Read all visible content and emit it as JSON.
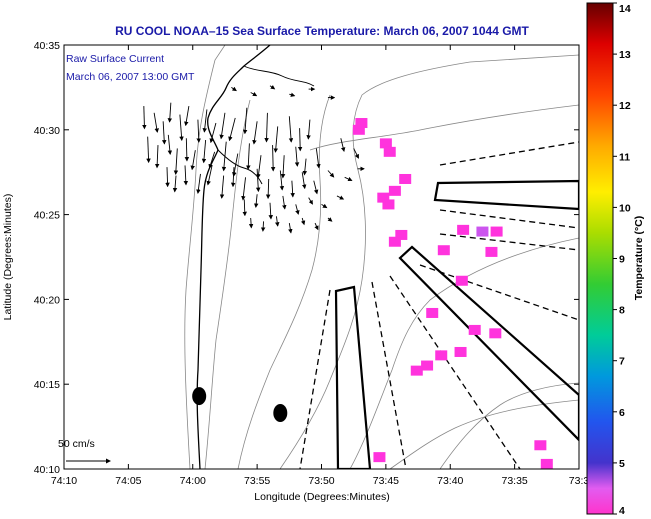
{
  "chart_data": {
    "type": "heatmap",
    "title": "RU COOL  NOAA–15  Sea Surface Temperature:  March 06, 2007 1044 GMT",
    "annotation_lines": [
      "Raw Surface Current",
      "March 06, 2007 13:00 GMT"
    ],
    "scale_label": "50 cm/s",
    "xlabel": "Longitude (Degrees:Minutes)",
    "ylabel": "Latitude (Degrees:Minutes)",
    "x_ticks": [
      {
        "value": 10,
        "label": "74:10"
      },
      {
        "value": 5,
        "label": "74:05"
      },
      {
        "value": 0,
        "label": "74:00"
      },
      {
        "value": -5,
        "label": "73:55"
      },
      {
        "value": -10,
        "label": "73:50"
      },
      {
        "value": -15,
        "label": "73:45"
      },
      {
        "value": -20,
        "label": "73:40"
      },
      {
        "value": -25,
        "label": "73:35"
      },
      {
        "value": -30,
        "label": "73:3"
      }
    ],
    "y_ticks": [
      {
        "value": 10,
        "label": "40:10"
      },
      {
        "value": 15,
        "label": "40:15"
      },
      {
        "value": 20,
        "label": "40:20"
      },
      {
        "value": 25,
        "label": "40:25"
      },
      {
        "value": 30,
        "label": "40:30"
      },
      {
        "value": 35,
        "label": "40:35"
      }
    ],
    "colorbar": {
      "label": "Temperature (°C)",
      "range": [
        4,
        14
      ],
      "ticks": [
        "4",
        "5",
        "6",
        "7",
        "8",
        "9",
        "10",
        "11",
        "12",
        "13",
        "14"
      ]
    },
    "sst_patches": [
      {
        "x": -12.9,
        "y": 30.0,
        "v": 4.1
      },
      {
        "x": -13.1,
        "y": 30.4,
        "v": 4.1
      },
      {
        "x": -15.0,
        "y": 29.2,
        "v": 4.1
      },
      {
        "x": -15.3,
        "y": 28.7,
        "v": 4.1
      },
      {
        "x": -16.5,
        "y": 27.1,
        "v": 4.1
      },
      {
        "x": -15.7,
        "y": 26.4,
        "v": 4.1
      },
      {
        "x": -14.8,
        "y": 26.0,
        "v": 4.2
      },
      {
        "x": -15.2,
        "y": 25.6,
        "v": 4.1
      },
      {
        "x": -16.2,
        "y": 23.8,
        "v": 4.1
      },
      {
        "x": -15.7,
        "y": 23.4,
        "v": 4.1
      },
      {
        "x": -21.0,
        "y": 24.1,
        "v": 4.4
      },
      {
        "x": -22.5,
        "y": 24.0,
        "v": 4.8
      },
      {
        "x": -23.6,
        "y": 24.0,
        "v": 4.3
      },
      {
        "x": -19.5,
        "y": 22.9,
        "v": 4.1
      },
      {
        "x": -23.2,
        "y": 22.8,
        "v": 4.1
      },
      {
        "x": -20.9,
        "y": 21.1,
        "v": 4.1
      },
      {
        "x": -18.6,
        "y": 19.2,
        "v": 4.1
      },
      {
        "x": -21.9,
        "y": 18.2,
        "v": 4.1
      },
      {
        "x": -23.5,
        "y": 18.0,
        "v": 4.1
      },
      {
        "x": -19.3,
        "y": 16.7,
        "v": 4.1
      },
      {
        "x": -20.8,
        "y": 16.9,
        "v": 4.2
      },
      {
        "x": -18.2,
        "y": 16.1,
        "v": 4.1
      },
      {
        "x": -17.4,
        "y": 15.8,
        "v": 4.1
      },
      {
        "x": -14.5,
        "y": 10.7,
        "v": 4.1
      },
      {
        "x": -27.0,
        "y": 11.4,
        "v": 4.1
      },
      {
        "x": -27.5,
        "y": 10.3,
        "v": 4.1
      }
    ],
    "land_markers": [
      {
        "x": -0.5,
        "y": 14.3
      },
      {
        "x": -6.8,
        "y": 13.3
      }
    ],
    "current_vectors": [
      {
        "x": 3.8,
        "y": 31.4,
        "u": 0.2,
        "v": -7
      },
      {
        "x": 3.0,
        "y": 31.0,
        "u": 1.0,
        "v": -6
      },
      {
        "x": 2.3,
        "y": 30.5,
        "u": 0.4,
        "v": -7
      },
      {
        "x": 1.7,
        "y": 31.6,
        "u": -0.4,
        "v": -6
      },
      {
        "x": 1.0,
        "y": 30.9,
        "u": 0.6,
        "v": -8
      },
      {
        "x": 0.3,
        "y": 31.4,
        "u": -1.0,
        "v": -6
      },
      {
        "x": -0.4,
        "y": 30.6,
        "u": 0.3,
        "v": -7
      },
      {
        "x": -1.1,
        "y": 31.2,
        "u": -0.8,
        "v": -7
      },
      {
        "x": -1.8,
        "y": 30.4,
        "u": -1.6,
        "v": -6
      },
      {
        "x": -2.5,
        "y": 31.0,
        "u": -1.2,
        "v": -8
      },
      {
        "x": -3.3,
        "y": 30.7,
        "u": -1.8,
        "v": -7
      },
      {
        "x": -4.2,
        "y": 31.3,
        "u": -0.6,
        "v": -8
      },
      {
        "x": -5.0,
        "y": 30.5,
        "u": -1.0,
        "v": -7
      },
      {
        "x": -5.8,
        "y": 31.0,
        "u": -0.3,
        "v": -9
      },
      {
        "x": -6.6,
        "y": 30.2,
        "u": -0.7,
        "v": -8
      },
      {
        "x": -7.5,
        "y": 30.8,
        "u": 0.6,
        "v": -8
      },
      {
        "x": -8.3,
        "y": 30.1,
        "u": 0.2,
        "v": -7
      },
      {
        "x": -9.1,
        "y": 30.6,
        "u": -0.5,
        "v": -6
      },
      {
        "x": 3.5,
        "y": 29.6,
        "u": 0.3,
        "v": -8
      },
      {
        "x": 2.7,
        "y": 29.1,
        "u": -0.3,
        "v": -7
      },
      {
        "x": 1.9,
        "y": 29.7,
        "u": 0.6,
        "v": -6
      },
      {
        "x": 1.2,
        "y": 28.9,
        "u": -0.5,
        "v": -8
      },
      {
        "x": 0.5,
        "y": 29.5,
        "u": 0.2,
        "v": -7
      },
      {
        "x": -0.2,
        "y": 28.8,
        "u": -1.0,
        "v": -6
      },
      {
        "x": -1.0,
        "y": 29.4,
        "u": -0.6,
        "v": -7
      },
      {
        "x": -1.7,
        "y": 28.7,
        "u": -1.6,
        "v": -5
      },
      {
        "x": -2.6,
        "y": 29.3,
        "u": -0.8,
        "v": -9
      },
      {
        "x": -3.5,
        "y": 28.6,
        "u": -1.3,
        "v": -7
      },
      {
        "x": -4.4,
        "y": 29.2,
        "u": -0.4,
        "v": -8
      },
      {
        "x": -5.3,
        "y": 28.5,
        "u": -0.9,
        "v": -7
      },
      {
        "x": -6.2,
        "y": 29.1,
        "u": 0.2,
        "v": -8
      },
      {
        "x": -7.1,
        "y": 28.5,
        "u": -0.4,
        "v": -7
      },
      {
        "x": -8.0,
        "y": 29.0,
        "u": 0.5,
        "v": -6
      },
      {
        "x": -8.8,
        "y": 28.3,
        "u": -0.5,
        "v": -5
      },
      {
        "x": -9.6,
        "y": 28.9,
        "u": 0.8,
        "v": -6
      },
      {
        "x": 2.0,
        "y": 27.8,
        "u": 0.2,
        "v": -6
      },
      {
        "x": 1.3,
        "y": 27.3,
        "u": -0.4,
        "v": -5
      },
      {
        "x": 0.6,
        "y": 27.9,
        "u": 0.3,
        "v": -6
      },
      {
        "x": -0.6,
        "y": 27.4,
        "u": -0.8,
        "v": -6
      },
      {
        "x": -1.5,
        "y": 27.9,
        "u": -1.3,
        "v": -6
      },
      {
        "x": -2.4,
        "y": 27.3,
        "u": -0.6,
        "v": -7
      },
      {
        "x": -3.2,
        "y": 27.8,
        "u": -0.3,
        "v": -6
      },
      {
        "x": -4.1,
        "y": 27.2,
        "u": -0.8,
        "v": -7
      },
      {
        "x": -5.0,
        "y": 27.7,
        "u": 0.4,
        "v": -7
      },
      {
        "x": -5.9,
        "y": 27.1,
        "u": -0.2,
        "v": -6
      },
      {
        "x": -6.8,
        "y": 27.6,
        "u": 0.6,
        "v": -6
      },
      {
        "x": -7.7,
        "y": 27.0,
        "u": 0.3,
        "v": -5
      },
      {
        "x": -8.5,
        "y": 27.5,
        "u": 0.8,
        "v": -5
      },
      {
        "x": -9.4,
        "y": 27.0,
        "u": 1.0,
        "v": -4
      },
      {
        "x": -10.5,
        "y": 27.6,
        "u": 1.8,
        "v": -2
      },
      {
        "x": -11.8,
        "y": 27.2,
        "u": 2.2,
        "v": -1
      },
      {
        "x": -12.8,
        "y": 27.7,
        "u": 2.0,
        "v": 0
      },
      {
        "x": -4.0,
        "y": 25.9,
        "u": 0.2,
        "v": -5
      },
      {
        "x": -5.0,
        "y": 26.2,
        "u": -0.4,
        "v": -4
      },
      {
        "x": -6.0,
        "y": 25.7,
        "u": 0.3,
        "v": -5
      },
      {
        "x": -7.0,
        "y": 26.1,
        "u": 0.6,
        "v": -4
      },
      {
        "x": -8.0,
        "y": 25.6,
        "u": 0.8,
        "v": -3
      },
      {
        "x": -9.0,
        "y": 26.0,
        "u": 1.2,
        "v": -2
      },
      {
        "x": -10.0,
        "y": 25.6,
        "u": 1.6,
        "v": -1
      },
      {
        "x": -11.2,
        "y": 26.1,
        "u": 2.0,
        "v": -1
      },
      {
        "x": -4.5,
        "y": 24.8,
        "u": 0.2,
        "v": -3
      },
      {
        "x": -5.5,
        "y": 24.6,
        "u": -0.2,
        "v": -3
      },
      {
        "x": -6.5,
        "y": 24.9,
        "u": 0.4,
        "v": -3
      },
      {
        "x": -7.5,
        "y": 24.5,
        "u": 0.5,
        "v": -3
      },
      {
        "x": -8.5,
        "y": 24.8,
        "u": 0.6,
        "v": -2
      },
      {
        "x": -9.5,
        "y": 24.5,
        "u": 0.9,
        "v": -2
      },
      {
        "x": -10.5,
        "y": 24.8,
        "u": 1.2,
        "v": -1
      },
      {
        "x": -3.0,
        "y": 32.5,
        "u": 1.5,
        "v": -1
      },
      {
        "x": -4.5,
        "y": 32.2,
        "u": 1.8,
        "v": -1
      },
      {
        "x": -6.0,
        "y": 32.6,
        "u": 1.4,
        "v": -1
      },
      {
        "x": -7.5,
        "y": 32.1,
        "u": 1.6,
        "v": -0.5
      },
      {
        "x": -9.0,
        "y": 32.4,
        "u": 1.8,
        "v": 0
      },
      {
        "x": -10.5,
        "y": 31.9,
        "u": 2.0,
        "v": 0
      },
      {
        "x": -11.5,
        "y": 29.5,
        "u": 1.0,
        "v": -4
      },
      {
        "x": -12.5,
        "y": 28.9,
        "u": 1.5,
        "v": -3
      }
    ]
  }
}
